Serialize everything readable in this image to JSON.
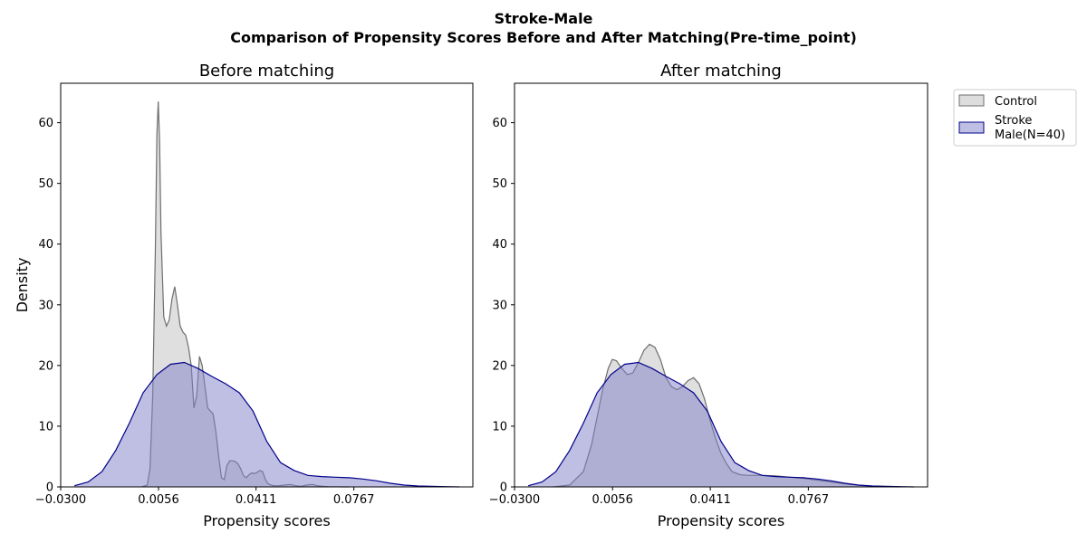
{
  "figure": {
    "title_line1": "Stroke-Male",
    "title_line2": "Comparison of Propensity Scores Before and After Matching(Pre-time_point)"
  },
  "legend": {
    "entries": [
      {
        "label_lines": [
          "Control"
        ],
        "fill": "#b3b3b3",
        "stroke": "#6e6e6e"
      },
      {
        "label_lines": [
          "Stroke",
          "Male(N=40)"
        ],
        "fill": "#8080c8",
        "stroke": "#00008b"
      }
    ],
    "placement": "outside-right-top"
  },
  "chart_data": [
    {
      "type": "area",
      "title": "Before matching",
      "xlabel": "Propensity scores",
      "ylabel": "Density",
      "xlim": [
        -0.03,
        0.12
      ],
      "ylim": [
        0,
        66.5
      ],
      "x_ticks": [
        -0.03,
        0.0056,
        0.0411,
        0.0767
      ],
      "x_tick_labels": [
        "−0.0300",
        "0.0056",
        "0.0411",
        "0.0767"
      ],
      "y_ticks": [
        0,
        10,
        20,
        30,
        40,
        50,
        60
      ],
      "grid": false,
      "series": [
        {
          "name": "Control",
          "x": [
            -0.0005,
            0.0015,
            0.0025,
            0.0035,
            0.0045,
            0.005,
            0.0055,
            0.006,
            0.0065,
            0.0075,
            0.0085,
            0.0095,
            0.0105,
            0.0115,
            0.0125,
            0.0135,
            0.0145,
            0.0155,
            0.0165,
            0.0175,
            0.0185,
            0.0195,
            0.0205,
            0.0215,
            0.0225,
            0.0235,
            0.0245,
            0.0255,
            0.0265,
            0.0275,
            0.0285,
            0.0295,
            0.0305,
            0.0315,
            0.0325,
            0.0335,
            0.0345,
            0.0355,
            0.0365,
            0.0375,
            0.0385,
            0.0395,
            0.0405,
            0.0415,
            0.0425,
            0.0435,
            0.0445,
            0.0455,
            0.0465,
            0.0475,
            0.0495,
            0.0515,
            0.0535,
            0.0555,
            0.0575,
            0.0595,
            0.0615,
            0.0635,
            0.0655,
            0.0675,
            0.0695,
            0.071,
            0.075
          ],
          "y": [
            0,
            0.3,
            3,
            15,
            40,
            58,
            63.5,
            57,
            42,
            28,
            26.5,
            27.5,
            31,
            33,
            30,
            26.5,
            25.5,
            25,
            23,
            20,
            13,
            15,
            21.5,
            20,
            16.5,
            13,
            12.5,
            12,
            9,
            5,
            1.5,
            1.2,
            3.5,
            4.3,
            4.3,
            4.2,
            3.8,
            3,
            1.9,
            1.5,
            2,
            2.3,
            2.2,
            2.4,
            2.7,
            2.5,
            1.2,
            0.5,
            0.3,
            0.2,
            0.2,
            0.3,
            0.4,
            0.2,
            0.1,
            0.3,
            0.4,
            0.2,
            0.1,
            0.05,
            0.02,
            0.01,
            0
          ]
        },
        {
          "name": "Stroke Male(N=40)",
          "x": [
            -0.025,
            -0.02,
            -0.015,
            -0.01,
            -0.005,
            0,
            0.005,
            0.01,
            0.015,
            0.02,
            0.025,
            0.03,
            0.035,
            0.04,
            0.045,
            0.05,
            0.055,
            0.06,
            0.065,
            0.07,
            0.075,
            0.08,
            0.085,
            0.09,
            0.095,
            0.1,
            0.105,
            0.11,
            0.115
          ],
          "y": [
            0.2,
            0.8,
            2.5,
            6,
            10.5,
            15.5,
            18.5,
            20.2,
            20.5,
            19.5,
            18.2,
            17,
            15.5,
            12.5,
            7.5,
            4,
            2.7,
            1.9,
            1.7,
            1.6,
            1.5,
            1.3,
            1.0,
            0.6,
            0.3,
            0.15,
            0.1,
            0.05,
            0
          ]
        }
      ]
    },
    {
      "type": "area",
      "title": "After matching",
      "xlabel": "Propensity scores",
      "ylabel": "",
      "xlim": [
        -0.03,
        0.12
      ],
      "ylim": [
        0,
        66.5
      ],
      "x_ticks": [
        -0.03,
        0.0056,
        0.0411,
        0.0767
      ],
      "x_tick_labels": [
        "−0.0300",
        "0.0056",
        "0.0411",
        "0.0767"
      ],
      "y_ticks": [
        0,
        10,
        20,
        30,
        40,
        50,
        60
      ],
      "grid": false,
      "series": [
        {
          "name": "Control",
          "x": [
            -0.016,
            -0.01,
            -0.005,
            -0.002,
            0,
            0.002,
            0.004,
            0.0055,
            0.007,
            0.009,
            0.011,
            0.013,
            0.015,
            0.017,
            0.019,
            0.021,
            0.023,
            0.025,
            0.027,
            0.029,
            0.031,
            0.033,
            0.035,
            0.037,
            0.039,
            0.041,
            0.043,
            0.045,
            0.047,
            0.049,
            0.052,
            0.055,
            0.06,
            0.065,
            0.07,
            0.075,
            0.08,
            0.085,
            0.09,
            0.095,
            0.1,
            0.105,
            0.11
          ],
          "y": [
            0,
            0.3,
            2.5,
            7,
            11.5,
            16,
            19.5,
            21,
            20.8,
            19.5,
            18.5,
            18.8,
            20.5,
            22.5,
            23.5,
            23,
            21,
            18,
            16.5,
            16,
            16.5,
            17.5,
            18,
            17,
            14.5,
            11,
            8,
            5.5,
            3.8,
            2.5,
            2,
            1.9,
            1.9,
            1.8,
            1.6,
            1.4,
            1.1,
            0.8,
            0.5,
            0.25,
            0.1,
            0.05,
            0
          ]
        },
        {
          "name": "Stroke Male(N=40)",
          "x": [
            -0.025,
            -0.02,
            -0.015,
            -0.01,
            -0.005,
            0,
            0.005,
            0.01,
            0.015,
            0.02,
            0.025,
            0.03,
            0.035,
            0.04,
            0.045,
            0.05,
            0.055,
            0.06,
            0.065,
            0.07,
            0.075,
            0.08,
            0.085,
            0.09,
            0.095,
            0.1,
            0.105,
            0.11,
            0.115
          ],
          "y": [
            0.2,
            0.8,
            2.5,
            6,
            10.5,
            15.5,
            18.5,
            20.2,
            20.5,
            19.5,
            18.2,
            17,
            15.5,
            12.5,
            7.5,
            4,
            2.7,
            1.9,
            1.7,
            1.6,
            1.5,
            1.3,
            1.0,
            0.6,
            0.3,
            0.15,
            0.1,
            0.05,
            0
          ]
        }
      ]
    }
  ]
}
